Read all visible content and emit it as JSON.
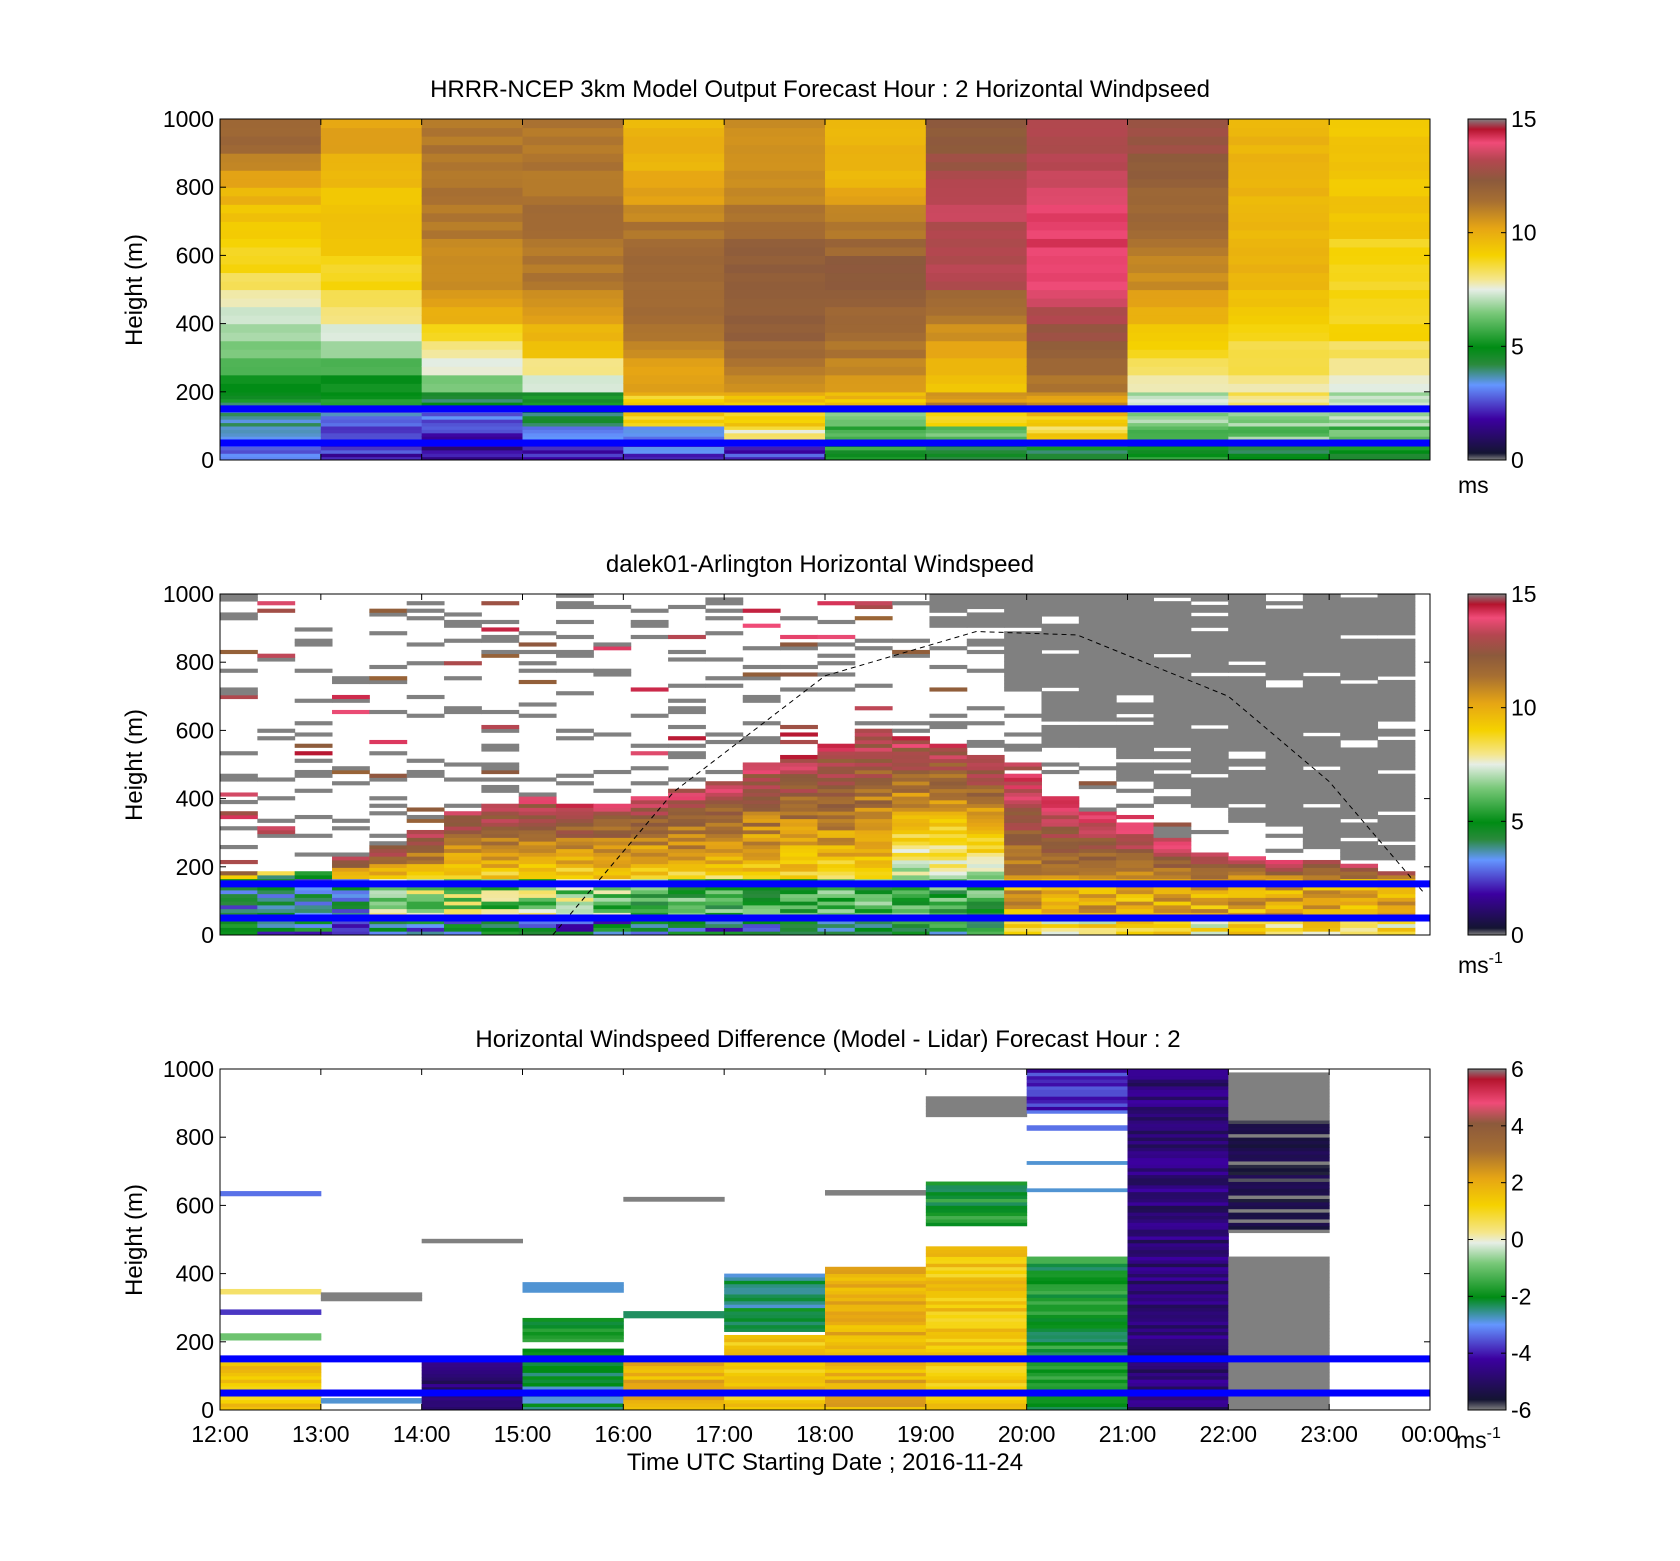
{
  "x_tick_labels": [
    "12:00",
    "13:00",
    "14:00",
    "15:00",
    "16:00",
    "17:00",
    "18:00",
    "19:00",
    "20:00",
    "21:00",
    "22:00",
    "23:00",
    "00:00"
  ],
  "x_label": "Time UTC  Starting Date ; 2016-11-24",
  "chart_data": [
    {
      "type": "heatmap",
      "title": "HRRR-NCEP 3km Model Output   Forecast Hour : 2 Horizontal Windpseed",
      "ylabel": "Height (m)",
      "ylim": [
        0,
        1000
      ],
      "yticks": [
        0,
        200,
        400,
        600,
        800,
        1000
      ],
      "colorbar": {
        "min": 0,
        "max": 15,
        "ticks": [
          0,
          5,
          10,
          15
        ],
        "unit": "ms",
        "unit_sup": ""
      },
      "x_hours": [
        "12:00",
        "13:00",
        "14:00",
        "15:00",
        "16:00",
        "17:00",
        "18:00",
        "19:00",
        "20:00",
        "21:00",
        "22:00",
        "23:00"
      ],
      "height_bins_m": [
        25,
        75,
        125,
        175,
        225,
        275,
        325,
        375,
        425,
        475,
        525,
        575,
        625,
        675,
        725,
        775,
        825,
        875,
        925,
        975
      ],
      "values_ms": [
        [
          3,
          2,
          1.5,
          2,
          2.5,
          2,
          5,
          4.5,
          4.5,
          5,
          4.5,
          5
        ],
        [
          3.5,
          2.5,
          2,
          2.5,
          3.5,
          8,
          6,
          6,
          9,
          5.5,
          6.5,
          6
        ],
        [
          4,
          3,
          3,
          4.5,
          9,
          9.5,
          7,
          9,
          9.5,
          6.5,
          6.5,
          6.5
        ],
        [
          4.5,
          5,
          4.5,
          5,
          9.5,
          10,
          9.5,
          11,
          11,
          7.5,
          8,
          7.5
        ],
        [
          5,
          5,
          6.5,
          7.5,
          10.5,
          11,
          10.5,
          9.5,
          11.5,
          8,
          8,
          7.5
        ],
        [
          6,
          6,
          7.5,
          8,
          10.5,
          11.5,
          11,
          10,
          12,
          8.5,
          8.5,
          8
        ],
        [
          6.5,
          7,
          8,
          9.5,
          11,
          12,
          11.5,
          10.5,
          12.5,
          9,
          8.5,
          8.5
        ],
        [
          7,
          7.5,
          9,
          10,
          11.5,
          12.5,
          12,
          11,
          13,
          9.5,
          9,
          9
        ],
        [
          7.5,
          8,
          10,
          10.5,
          12,
          12.5,
          12,
          11.5,
          13.5,
          10,
          9.5,
          9
        ],
        [
          8,
          8.5,
          10.5,
          11,
          12,
          12.5,
          12.5,
          12,
          14,
          10.5,
          9.5,
          9
        ],
        [
          8.5,
          9,
          11,
          11.5,
          12,
          12.5,
          12.5,
          13.5,
          14.5,
          11,
          10,
          9
        ],
        [
          9,
          9,
          11,
          11.5,
          12,
          12.5,
          12.5,
          13.5,
          14.5,
          11,
          10,
          9
        ],
        [
          9,
          9.5,
          11,
          11.5,
          12,
          12.5,
          12,
          13.5,
          14.5,
          11.5,
          10,
          9
        ],
        [
          9.5,
          9.5,
          11.5,
          12,
          11.5,
          12,
          11.5,
          13.5,
          14.5,
          12,
          10,
          9.5
        ],
        [
          9.5,
          9.5,
          11.5,
          12,
          11,
          11.5,
          11,
          14,
          14.5,
          12,
          10,
          9.5
        ],
        [
          10,
          9.5,
          11.5,
          11.5,
          10.5,
          11,
          10.5,
          13.5,
          14,
          12,
          10,
          9.5
        ],
        [
          10.5,
          10,
          11.5,
          11.5,
          10.5,
          11,
          10,
          13.5,
          14,
          12.5,
          10,
          9.5
        ],
        [
          11,
          10,
          11.5,
          11.5,
          10,
          11,
          10,
          13,
          13.5,
          12.5,
          10,
          9.5
        ],
        [
          12,
          10.5,
          11.5,
          11.5,
          10,
          11,
          10,
          12.5,
          13.5,
          13,
          10,
          9.5
        ],
        [
          12,
          10.5,
          11.5,
          11.5,
          10,
          11,
          10,
          12.5,
          13.5,
          13,
          10,
          9.5
        ]
      ],
      "markers": {
        "lines_m": [
          150,
          50
        ],
        "line_color": "#0000ff"
      }
    },
    {
      "type": "heatmap",
      "title": "dalek01-Arlington  Horizontal Windspeed",
      "ylabel": "Height (m)",
      "ylim": [
        0,
        1000
      ],
      "yticks": [
        0,
        200,
        400,
        600,
        800,
        1000
      ],
      "colorbar": {
        "min": 0,
        "max": 15,
        "ticks": [
          0,
          5,
          10,
          15
        ],
        "unit": "ms",
        "unit_sup": "-1"
      },
      "x_range_hours": [
        12,
        24
      ],
      "dense_top_m": [
        175,
        180,
        180,
        230,
        260,
        300,
        360,
        380,
        400,
        380,
        380,
        400,
        420,
        450,
        500,
        520,
        560,
        600,
        580,
        560,
        520,
        470,
        400,
        360,
        320,
        280,
        240,
        230,
        220,
        220,
        200,
        180
      ],
      "gray_region": {
        "from_hour": 19.0,
        "to_hour": 23.85,
        "down_to_m": [
          900,
          700,
          550,
          450,
          380,
          320,
          260,
          220
        ]
      },
      "overlay_curve": {
        "style": "dashed",
        "points_hour_m": [
          [
            15.3,
            0
          ],
          [
            16.5,
            420
          ],
          [
            18,
            760
          ],
          [
            19.5,
            890
          ],
          [
            20.5,
            880
          ],
          [
            22,
            700
          ],
          [
            23,
            450
          ],
          [
            23.95,
            120
          ]
        ]
      },
      "markers": {
        "lines_m": [
          150,
          50
        ],
        "line_color": "#0000ff"
      }
    },
    {
      "type": "heatmap",
      "title": "Horizontal Windspeed Difference (Model - Lidar) Forecast Hour : 2",
      "ylabel": "Height (m)",
      "ylim": [
        0,
        1000
      ],
      "yticks": [
        0,
        200,
        400,
        600,
        800,
        1000
      ],
      "colorbar": {
        "min": -6,
        "max": 6,
        "ticks": [
          -6,
          -4,
          -2,
          0,
          2,
          4,
          6
        ],
        "unit": "ms",
        "unit_sup": "-1"
      },
      "segments": [
        {
          "col": 0,
          "from_m": 0,
          "to_m": 140,
          "value": 1.5
        },
        {
          "col": 0,
          "from_m": 340,
          "to_m": 355,
          "value": 0.5
        },
        {
          "col": 0,
          "from_m": 280,
          "to_m": 295,
          "value": -4
        },
        {
          "col": 0,
          "from_m": 205,
          "to_m": 225,
          "value": -1
        },
        {
          "col": 0,
          "from_m": 628,
          "to_m": 642,
          "value": -3.5
        },
        {
          "col": 1,
          "from_m": 320,
          "to_m": 345,
          "value": "nan"
        },
        {
          "col": 1,
          "from_m": 20,
          "to_m": 35,
          "value": -3
        },
        {
          "col": 2,
          "from_m": 0,
          "to_m": 145,
          "value": -5
        },
        {
          "col": 2,
          "from_m": 490,
          "to_m": 502,
          "value": "nan"
        },
        {
          "col": 3,
          "from_m": 0,
          "to_m": 180,
          "value": -2.5
        },
        {
          "col": 3,
          "from_m": 200,
          "to_m": 270,
          "value": -2
        },
        {
          "col": 3,
          "from_m": 345,
          "to_m": 375,
          "value": -3
        },
        {
          "col": 4,
          "from_m": 0,
          "to_m": 160,
          "value": 2
        },
        {
          "col": 4,
          "from_m": 270,
          "to_m": 290,
          "value": -2.5
        },
        {
          "col": 4,
          "from_m": 612,
          "to_m": 625,
          "value": "nan"
        },
        {
          "col": 5,
          "from_m": 0,
          "to_m": 220,
          "value": 1.5
        },
        {
          "col": 5,
          "from_m": 230,
          "to_m": 400,
          "value": -2.5
        },
        {
          "col": 6,
          "from_m": 0,
          "to_m": 420,
          "value": 2
        },
        {
          "col": 6,
          "from_m": 630,
          "to_m": 645,
          "value": "nan"
        },
        {
          "col": 7,
          "from_m": 0,
          "to_m": 480,
          "value": 1.5
        },
        {
          "col": 7,
          "from_m": 540,
          "to_m": 670,
          "value": -2
        },
        {
          "col": 7,
          "from_m": 860,
          "to_m": 920,
          "value": "nan"
        },
        {
          "col": 8,
          "from_m": 0,
          "to_m": 450,
          "value": -2
        },
        {
          "col": 8,
          "from_m": 640,
          "to_m": 650,
          "value": -3
        },
        {
          "col": 8,
          "from_m": 720,
          "to_m": 730,
          "value": -3
        },
        {
          "col": 8,
          "from_m": 820,
          "to_m": 835,
          "value": -3.5
        },
        {
          "col": 8,
          "from_m": 870,
          "to_m": 1000,
          "value": -4
        },
        {
          "col": 9,
          "from_m": 0,
          "to_m": 1000,
          "value": -5
        },
        {
          "col": 10,
          "from_m": 0,
          "to_m": 450,
          "value": "nan"
        },
        {
          "col": 10,
          "from_m": 520,
          "to_m": 850,
          "value": -6
        },
        {
          "col": 10,
          "from_m": 850,
          "to_m": 990,
          "value": "nan"
        }
      ],
      "markers": {
        "lines_m": [
          150,
          50
        ],
        "line_color": "#0000ff"
      }
    }
  ],
  "colors": {
    "marker_line": "#0000ff",
    "missing": "#808080",
    "speed_colormap_stops": [
      [
        0.0,
        "#808080"
      ],
      [
        0.02,
        "#141432"
      ],
      [
        0.12,
        "#3c00a0"
      ],
      [
        0.22,
        "#6496ff"
      ],
      [
        0.28,
        "#2a8a3c"
      ],
      [
        0.33,
        "#008c14"
      ],
      [
        0.43,
        "#78c878"
      ],
      [
        0.5,
        "#e6eee6"
      ],
      [
        0.53,
        "#f5e68c"
      ],
      [
        0.6,
        "#f5d200"
      ],
      [
        0.68,
        "#e6a514"
      ],
      [
        0.76,
        "#a66e32"
      ],
      [
        0.82,
        "#8c5a3c"
      ],
      [
        0.88,
        "#b44650"
      ],
      [
        0.93,
        "#f04b78"
      ],
      [
        0.97,
        "#b4142d"
      ],
      [
        1.0,
        "#808080"
      ]
    ],
    "diff_colormap_stops": [
      [
        0.0,
        "#808080"
      ],
      [
        0.03,
        "#141432"
      ],
      [
        0.15,
        "#3c00a0"
      ],
      [
        0.25,
        "#6496ff"
      ],
      [
        0.33,
        "#008c14"
      ],
      [
        0.43,
        "#78c878"
      ],
      [
        0.49,
        "#e6eee6"
      ],
      [
        0.52,
        "#f5e68c"
      ],
      [
        0.6,
        "#f5d200"
      ],
      [
        0.68,
        "#e6a514"
      ],
      [
        0.76,
        "#a66e32"
      ],
      [
        0.84,
        "#8c5a3c"
      ],
      [
        0.9,
        "#f04b78"
      ],
      [
        0.97,
        "#b4142d"
      ],
      [
        1.0,
        "#808080"
      ]
    ]
  }
}
